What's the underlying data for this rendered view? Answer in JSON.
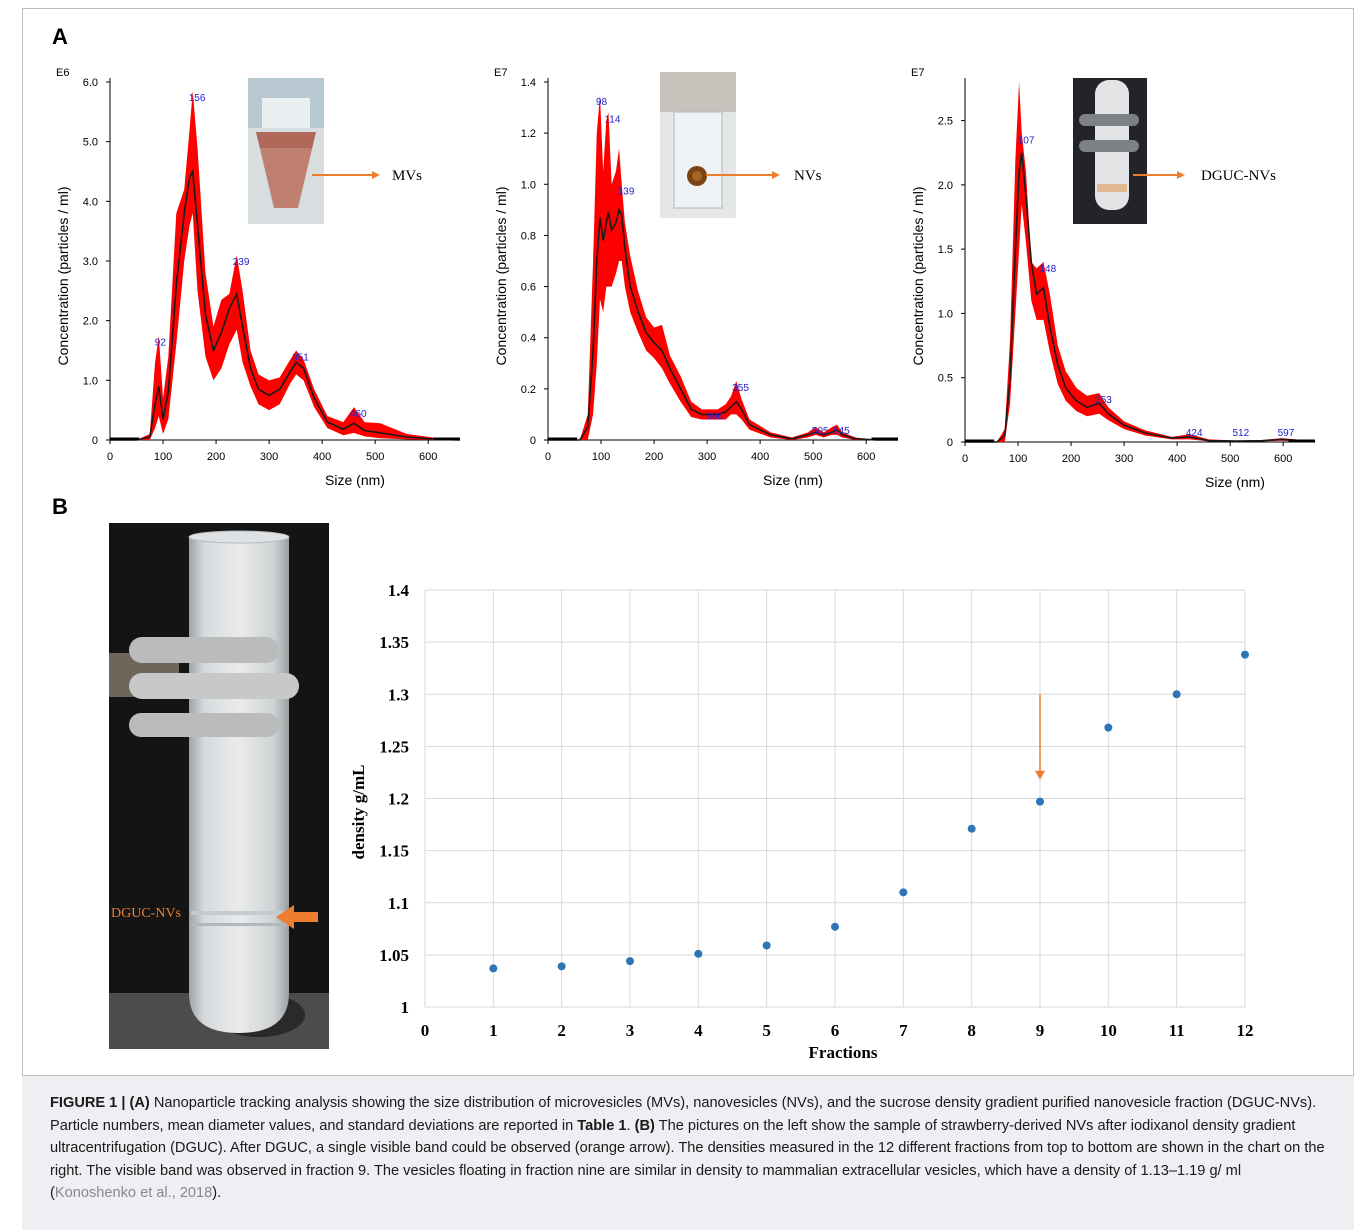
{
  "panel_labels": {
    "a": "A",
    "b": "B"
  },
  "nta_panels": [
    {
      "exponent": "E6",
      "ylabel": "Concentration (particles / ml)",
      "xlabel": "Size (nm)",
      "y_ticks": [
        "0",
        "1.0",
        "2.0",
        "3.0",
        "4.0",
        "5.0",
        "6.0"
      ],
      "x_ticks": [
        "0",
        "100",
        "200",
        "300",
        "400",
        "500",
        "600"
      ],
      "peak_labels": [
        "92",
        "156",
        "239",
        "351",
        "460"
      ],
      "inset_label": "MVs"
    },
    {
      "exponent": "E7",
      "ylabel": "Concentration (particles / ml)",
      "xlabel": "Size (nm)",
      "y_ticks": [
        "0",
        "0.2",
        "0.4",
        "0.6",
        "0.8",
        "1.0",
        "1.2",
        "1.4"
      ],
      "x_ticks": [
        "0",
        "100",
        "200",
        "300",
        "400",
        "500",
        "600"
      ],
      "peak_labels": [
        "98",
        "114",
        "139",
        "306",
        "355",
        "505",
        "545"
      ],
      "inset_label": "NVs"
    },
    {
      "exponent": "E7",
      "ylabel": "Concentration (particles / ml)",
      "xlabel": "Size (nm)",
      "y_ticks": [
        "0",
        "0.5",
        "1.0",
        "1.5",
        "2.0",
        "2.5"
      ],
      "x_ticks": [
        "0",
        "100",
        "200",
        "300",
        "400",
        "500",
        "600"
      ],
      "peak_labels": [
        "107",
        "148",
        "253",
        "424",
        "512",
        "597"
      ],
      "inset_label": "DGUC-NVs"
    }
  ],
  "tube_label": "DGUC-NVs",
  "chart_data": [
    {
      "type": "line",
      "ylabel": "Concentration (particles / ml)",
      "xlabel": "Size (nm)",
      "y_multiplier": "E6",
      "xlim": [
        0,
        660
      ],
      "ylim": [
        0,
        6.0
      ],
      "x": [
        0,
        50,
        75,
        85,
        92,
        100,
        110,
        125,
        140,
        150,
        156,
        165,
        180,
        195,
        210,
        225,
        239,
        250,
        265,
        280,
        300,
        320,
        340,
        351,
        365,
        385,
        410,
        440,
        460,
        480,
        510,
        560,
        620,
        660
      ],
      "mean": [
        0,
        0,
        0.05,
        0.6,
        0.9,
        0.35,
        0.8,
        2.6,
        3.8,
        4.4,
        4.5,
        3.6,
        2.1,
        1.5,
        1.8,
        2.2,
        2.45,
        1.9,
        1.2,
        0.85,
        0.75,
        0.85,
        1.15,
        1.3,
        1.2,
        0.7,
        0.3,
        0.18,
        0.28,
        0.16,
        0.12,
        0.05,
        0.01,
        0
      ],
      "upper": [
        0,
        0,
        0.1,
        1.3,
        1.75,
        0.7,
        1.4,
        3.8,
        4.2,
        5.2,
        5.85,
        4.9,
        2.8,
        1.9,
        2.35,
        2.45,
        3.1,
        2.5,
        1.5,
        1.1,
        1.0,
        1.05,
        1.35,
        1.5,
        1.35,
        0.85,
        0.4,
        0.3,
        0.55,
        0.3,
        0.28,
        0.1,
        0.03,
        0
      ],
      "lower": [
        0,
        0,
        0.0,
        0.2,
        0.4,
        0.1,
        0.35,
        1.6,
        3.0,
        3.6,
        3.8,
        2.5,
        1.4,
        1.0,
        1.2,
        1.6,
        1.85,
        1.3,
        0.9,
        0.6,
        0.5,
        0.6,
        0.95,
        1.1,
        1.0,
        0.55,
        0.2,
        0.08,
        0.12,
        0.06,
        0.03,
        0.01,
        0,
        0
      ],
      "peaks": [
        92,
        156,
        239,
        351,
        460
      ]
    },
    {
      "type": "line",
      "ylabel": "Concentration (particles / ml)",
      "xlabel": "Size (nm)",
      "y_multiplier": "E7",
      "xlim": [
        0,
        660
      ],
      "ylim": [
        0,
        1.4
      ],
      "x": [
        0,
        60,
        75,
        85,
        92,
        98,
        104,
        110,
        114,
        120,
        128,
        134,
        139,
        145,
        155,
        170,
        185,
        200,
        215,
        230,
        250,
        270,
        290,
        306,
        320,
        335,
        345,
        355,
        365,
        380,
        420,
        460,
        490,
        505,
        520,
        535,
        545,
        555,
        580,
        620,
        660
      ],
      "mean": [
        0,
        0,
        0.05,
        0.35,
        0.7,
        0.87,
        0.78,
        0.85,
        0.89,
        0.82,
        0.85,
        0.9,
        0.88,
        0.75,
        0.6,
        0.5,
        0.42,
        0.38,
        0.35,
        0.28,
        0.2,
        0.12,
        0.1,
        0.1,
        0.1,
        0.11,
        0.13,
        0.15,
        0.12,
        0.06,
        0.02,
        0.005,
        0.02,
        0.03,
        0.02,
        0.03,
        0.04,
        0.02,
        0.005,
        0,
        0
      ],
      "upper": [
        0,
        0,
        0.1,
        0.7,
        1.2,
        1.35,
        1.05,
        1.25,
        1.28,
        1.0,
        1.05,
        1.14,
        1.0,
        0.85,
        0.72,
        0.58,
        0.48,
        0.44,
        0.45,
        0.33,
        0.25,
        0.15,
        0.12,
        0.12,
        0.12,
        0.14,
        0.17,
        0.23,
        0.16,
        0.08,
        0.03,
        0.01,
        0.03,
        0.05,
        0.03,
        0.05,
        0.06,
        0.03,
        0.01,
        0,
        0
      ],
      "lower": [
        0,
        0,
        0.0,
        0.1,
        0.3,
        0.55,
        0.5,
        0.6,
        0.6,
        0.6,
        0.65,
        0.7,
        0.7,
        0.6,
        0.5,
        0.42,
        0.35,
        0.32,
        0.28,
        0.22,
        0.15,
        0.09,
        0.08,
        0.08,
        0.08,
        0.08,
        0.1,
        0.1,
        0.08,
        0.04,
        0.01,
        0,
        0.01,
        0.02,
        0.01,
        0.02,
        0.02,
        0.01,
        0,
        0,
        0
      ],
      "peaks": [
        98,
        114,
        139,
        306,
        355,
        505,
        545
      ]
    },
    {
      "type": "line",
      "ylabel": "Concentration (particles / ml)",
      "xlabel": "Size (nm)",
      "y_multiplier": "E7",
      "xlim": [
        0,
        660
      ],
      "ylim": [
        0,
        2.8
      ],
      "x": [
        0,
        60,
        75,
        85,
        95,
        102,
        107,
        115,
        125,
        135,
        148,
        160,
        175,
        190,
        210,
        230,
        253,
        270,
        300,
        340,
        390,
        424,
        460,
        512,
        560,
        597,
        640,
        660
      ],
      "mean": [
        0,
        0,
        0.05,
        0.5,
        1.5,
        2.1,
        2.25,
        1.9,
        1.4,
        1.15,
        1.2,
        0.9,
        0.6,
        0.42,
        0.32,
        0.27,
        0.3,
        0.22,
        0.13,
        0.07,
        0.03,
        0.04,
        0.01,
        0.008,
        0.01,
        0.02,
        0.01,
        0
      ],
      "upper": [
        0,
        0,
        0.1,
        0.8,
        2.2,
        2.8,
        2.4,
        2.1,
        1.4,
        1.35,
        1.4,
        1.15,
        0.75,
        0.55,
        0.42,
        0.36,
        0.38,
        0.27,
        0.16,
        0.09,
        0.04,
        0.06,
        0.02,
        0.012,
        0.015,
        0.03,
        0.015,
        0
      ],
      "lower": [
        0,
        0,
        0.0,
        0.3,
        1.0,
        1.5,
        1.85,
        1.55,
        1.1,
        0.95,
        0.95,
        0.7,
        0.45,
        0.32,
        0.24,
        0.2,
        0.22,
        0.17,
        0.1,
        0.05,
        0.02,
        0.02,
        0.005,
        0.004,
        0.005,
        0.01,
        0.005,
        0
      ],
      "peaks": [
        107,
        148,
        253,
        424,
        512,
        597
      ]
    },
    {
      "type": "scatter",
      "xlabel": "Fractions",
      "ylabel": "density g/mL",
      "x_ticks": [
        "0",
        "1",
        "2",
        "3",
        "4",
        "5",
        "6",
        "7",
        "8",
        "9",
        "10",
        "11",
        "12"
      ],
      "y_ticks": [
        "1",
        "1.05",
        "1.1",
        "1.15",
        "1.2",
        "1.25",
        "1.3",
        "1.35",
        "1.4"
      ],
      "xlim": [
        0,
        12
      ],
      "ylim": [
        1.0,
        1.4
      ],
      "grid": true,
      "x": [
        1,
        2,
        3,
        4,
        5,
        6,
        7,
        8,
        9,
        10,
        11,
        12
      ],
      "values": [
        1.037,
        1.039,
        1.044,
        1.051,
        1.059,
        1.077,
        1.11,
        1.171,
        1.197,
        1.268,
        1.3,
        1.338
      ],
      "arrow_at_fraction": 9,
      "colors": {
        "marker": "#2e75b6",
        "arrow": "#ed7d31",
        "grid": "#d9d9d9"
      }
    }
  ],
  "caption": {
    "fig_label": "FIGURE 1 |",
    "a_label": "(A)",
    "part1": " Nanoparticle tracking analysis showing the size distribution of microvesicles (MVs), nanovesicles (NVs), and the sucrose density gradient purified nanovesicle fraction (DGUC-NVs). Particle numbers, mean diameter values, and standard deviations are reported in ",
    "table_ref": "Table 1",
    "dot": ". ",
    "b_label": "(B)",
    "part2": " The pictures on the left show the sample of strawberry-derived NVs after iodixanol density gradient ultracentrifugation (DGUC). After DGUC, a single visible band could be observed (orange arrow). The densities measured in the 12 different fractions from top to bottom are shown in the chart on the right. The visible band was observed in fraction 9. The vesicles floating in fraction nine are similar in density to mammalian extracellular vesicles, which have a density of 1.13–1.19 g/ ml (",
    "citation": "Konoshenko et al., 2018",
    "end": ")."
  },
  "colors": {
    "band": "#ff0000",
    "mean_line": "#1a1a1a",
    "peak_label": "#2222cc",
    "inset_arrow": "#ed7d31"
  }
}
